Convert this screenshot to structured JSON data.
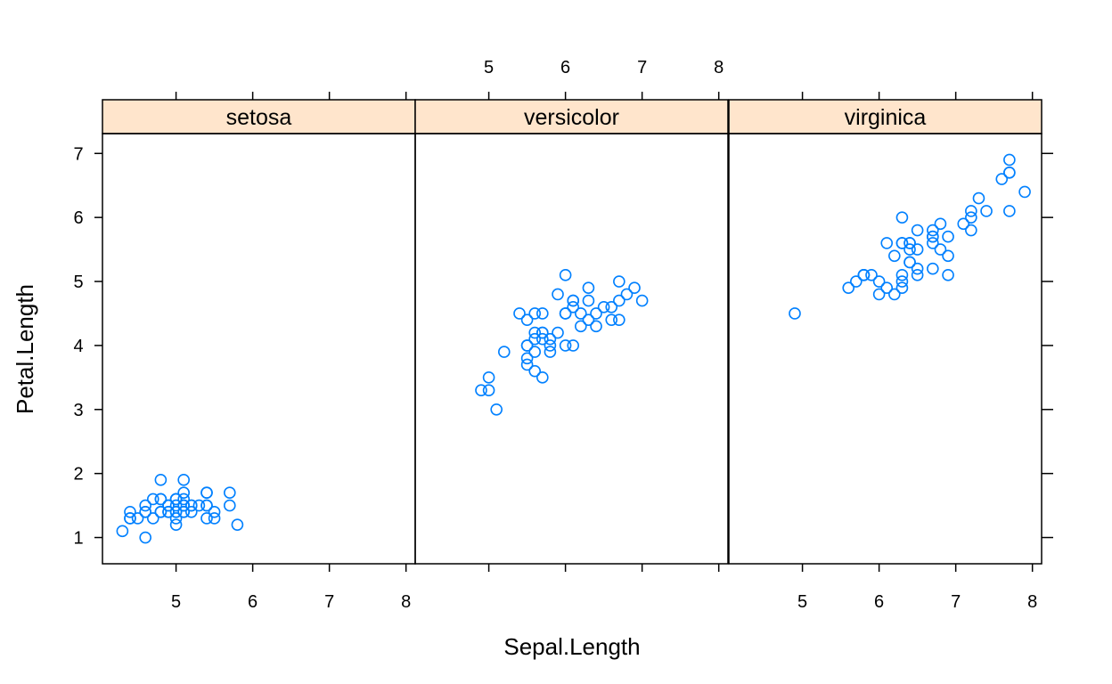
{
  "chart_data": {
    "type": "scatter",
    "layout": "trellis-1x3",
    "xlabel": "Sepal.Length",
    "ylabel": "Petal.Length",
    "xlim": [
      4.04,
      8.12
    ],
    "ylim": [
      0.59,
      7.31
    ],
    "x_ticks": [
      5,
      6,
      7,
      8
    ],
    "y_ticks": [
      1,
      2,
      3,
      4,
      5,
      6,
      7
    ],
    "colors": {
      "strip_fill": "#ffe5cc",
      "point_stroke": "#0080ff",
      "frame": "#000000"
    },
    "panels": [
      {
        "label": "setosa",
        "points": [
          [
            5.1,
            1.4
          ],
          [
            4.9,
            1.4
          ],
          [
            4.7,
            1.3
          ],
          [
            4.6,
            1.5
          ],
          [
            5.0,
            1.4
          ],
          [
            5.4,
            1.7
          ],
          [
            4.6,
            1.4
          ],
          [
            5.0,
            1.5
          ],
          [
            4.4,
            1.4
          ],
          [
            4.9,
            1.5
          ],
          [
            5.4,
            1.5
          ],
          [
            4.8,
            1.6
          ],
          [
            4.8,
            1.4
          ],
          [
            4.3,
            1.1
          ],
          [
            5.8,
            1.2
          ],
          [
            5.7,
            1.5
          ],
          [
            5.4,
            1.3
          ],
          [
            5.1,
            1.4
          ],
          [
            5.7,
            1.7
          ],
          [
            5.1,
            1.5
          ],
          [
            5.4,
            1.7
          ],
          [
            5.1,
            1.5
          ],
          [
            4.6,
            1.0
          ],
          [
            5.1,
            1.7
          ],
          [
            4.8,
            1.9
          ],
          [
            5.0,
            1.6
          ],
          [
            5.0,
            1.6
          ],
          [
            5.2,
            1.5
          ],
          [
            5.2,
            1.4
          ],
          [
            4.7,
            1.6
          ],
          [
            4.8,
            1.6
          ],
          [
            5.4,
            1.5
          ],
          [
            5.2,
            1.5
          ],
          [
            5.5,
            1.4
          ],
          [
            4.9,
            1.5
          ],
          [
            5.0,
            1.2
          ],
          [
            5.5,
            1.3
          ],
          [
            4.9,
            1.4
          ],
          [
            4.4,
            1.3
          ],
          [
            5.1,
            1.5
          ],
          [
            5.0,
            1.3
          ],
          [
            4.5,
            1.3
          ],
          [
            4.4,
            1.3
          ],
          [
            5.0,
            1.6
          ],
          [
            5.1,
            1.9
          ],
          [
            4.8,
            1.4
          ],
          [
            5.1,
            1.6
          ],
          [
            4.6,
            1.4
          ],
          [
            5.3,
            1.5
          ],
          [
            5.0,
            1.4
          ]
        ]
      },
      {
        "label": "versicolor",
        "points": [
          [
            7.0,
            4.7
          ],
          [
            6.4,
            4.5
          ],
          [
            6.9,
            4.9
          ],
          [
            5.5,
            4.0
          ],
          [
            6.5,
            4.6
          ],
          [
            5.7,
            4.5
          ],
          [
            6.3,
            4.7
          ],
          [
            4.9,
            3.3
          ],
          [
            6.6,
            4.6
          ],
          [
            5.2,
            3.9
          ],
          [
            5.0,
            3.5
          ],
          [
            5.9,
            4.2
          ],
          [
            6.0,
            4.0
          ],
          [
            6.1,
            4.7
          ],
          [
            5.6,
            3.6
          ],
          [
            6.7,
            4.4
          ],
          [
            5.6,
            4.5
          ],
          [
            5.8,
            4.1
          ],
          [
            6.2,
            4.5
          ],
          [
            5.6,
            3.9
          ],
          [
            5.9,
            4.8
          ],
          [
            6.1,
            4.0
          ],
          [
            6.3,
            4.9
          ],
          [
            6.1,
            4.7
          ],
          [
            6.4,
            4.3
          ],
          [
            6.6,
            4.4
          ],
          [
            6.8,
            4.8
          ],
          [
            6.7,
            5.0
          ],
          [
            6.0,
            4.5
          ],
          [
            5.7,
            3.5
          ],
          [
            5.5,
            3.8
          ],
          [
            5.5,
            3.7
          ],
          [
            5.8,
            3.9
          ],
          [
            6.0,
            5.1
          ],
          [
            5.4,
            4.5
          ],
          [
            6.0,
            4.5
          ],
          [
            6.7,
            4.7
          ],
          [
            6.3,
            4.4
          ],
          [
            5.6,
            4.1
          ],
          [
            5.5,
            4.0
          ],
          [
            5.5,
            4.4
          ],
          [
            6.1,
            4.6
          ],
          [
            5.8,
            4.0
          ],
          [
            5.0,
            3.3
          ],
          [
            5.6,
            4.2
          ],
          [
            5.7,
            4.2
          ],
          [
            5.7,
            4.2
          ],
          [
            6.2,
            4.3
          ],
          [
            5.1,
            3.0
          ],
          [
            5.7,
            4.1
          ]
        ]
      },
      {
        "label": "virginica",
        "points": [
          [
            6.3,
            6.0
          ],
          [
            5.8,
            5.1
          ],
          [
            7.1,
            5.9
          ],
          [
            6.3,
            5.6
          ],
          [
            6.5,
            5.8
          ],
          [
            7.6,
            6.6
          ],
          [
            4.9,
            4.5
          ],
          [
            7.3,
            6.3
          ],
          [
            6.7,
            5.8
          ],
          [
            7.2,
            6.1
          ],
          [
            6.5,
            5.1
          ],
          [
            6.4,
            5.3
          ],
          [
            6.8,
            5.5
          ],
          [
            5.7,
            5.0
          ],
          [
            5.8,
            5.1
          ],
          [
            6.4,
            5.3
          ],
          [
            6.5,
            5.5
          ],
          [
            7.7,
            6.7
          ],
          [
            7.7,
            6.9
          ],
          [
            6.0,
            5.0
          ],
          [
            6.9,
            5.7
          ],
          [
            5.6,
            4.9
          ],
          [
            7.7,
            6.7
          ],
          [
            6.3,
            4.9
          ],
          [
            6.7,
            5.7
          ],
          [
            7.2,
            6.0
          ],
          [
            6.2,
            4.8
          ],
          [
            6.1,
            4.9
          ],
          [
            6.4,
            5.6
          ],
          [
            7.2,
            5.8
          ],
          [
            7.4,
            6.1
          ],
          [
            7.9,
            6.4
          ],
          [
            6.4,
            5.6
          ],
          [
            6.3,
            5.1
          ],
          [
            6.1,
            5.6
          ],
          [
            7.7,
            6.1
          ],
          [
            6.3,
            5.6
          ],
          [
            6.4,
            5.5
          ],
          [
            6.0,
            4.8
          ],
          [
            6.9,
            5.4
          ],
          [
            6.7,
            5.6
          ],
          [
            6.9,
            5.1
          ],
          [
            5.8,
            5.1
          ],
          [
            6.8,
            5.9
          ],
          [
            6.7,
            5.7
          ],
          [
            6.7,
            5.2
          ],
          [
            6.3,
            5.0
          ],
          [
            6.5,
            5.2
          ],
          [
            6.2,
            5.4
          ],
          [
            5.9,
            5.1
          ]
        ]
      }
    ]
  }
}
